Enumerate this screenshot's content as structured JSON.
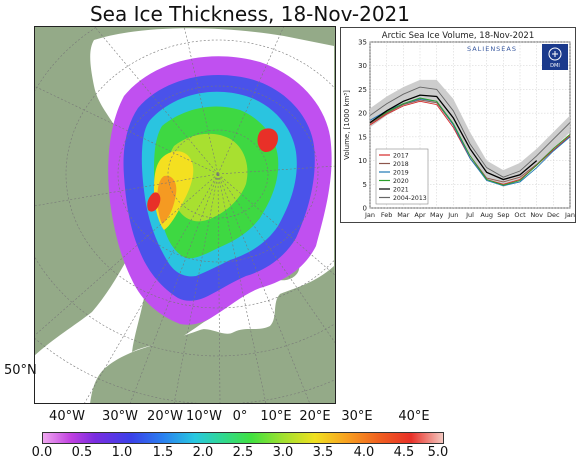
{
  "title": "Sea Ice Thickness, 18-Nov-2021",
  "map": {
    "lon_labels": [
      "40°W",
      "30°W",
      "20°W",
      "10°W",
      "0°",
      "10°E",
      "20°E",
      "30°E",
      "40°E"
    ],
    "lat_label": "50°N",
    "colorbar_ticks": [
      "0.0",
      "0.5",
      "1.0",
      "1.5",
      "2.0",
      "2.5",
      "3.0",
      "3.5",
      "4.0",
      "4.5",
      "5.0"
    ],
    "colors": {
      "land": "#94aa88",
      "ocean": "#ffffff",
      "thin_ice": "#b040f0",
      "thick_ice": "#e83028"
    }
  },
  "chart_data": {
    "type": "line",
    "title": "Arctic Sea Ice Volume, 18-Nov-2021",
    "brand": "SALIENSEAS",
    "logo_text": "DMI",
    "ylabel": "Volume, [1000 km³]",
    "ylim": [
      0,
      35
    ],
    "yticks": [
      "0",
      "5",
      "10",
      "15",
      "20",
      "25",
      "30",
      "35"
    ],
    "categories": [
      "Jan",
      "Feb",
      "Mar",
      "Apr",
      "May",
      "Jun",
      "Jul",
      "Aug",
      "Sep",
      "Oct",
      "Nov",
      "Dec",
      "Jan"
    ],
    "x": [
      0,
      1,
      2,
      3,
      4,
      5,
      6,
      7,
      8,
      9,
      10,
      11,
      12
    ],
    "grid": true,
    "legend_position": "lower-left",
    "band": {
      "upper": [
        21,
        23.5,
        25.5,
        27,
        27,
        23,
        16,
        10,
        8,
        9.5,
        12.5,
        16,
        19.5
      ],
      "lower": [
        17,
        19.5,
        21.5,
        22.5,
        22,
        17.5,
        11,
        6,
        4.5,
        5.5,
        9,
        12.5,
        16
      ]
    },
    "series": [
      {
        "name": "2017",
        "color": "#d62728",
        "values": [
          17.5,
          19.8,
          21.5,
          22.5,
          21.8,
          17.0,
          10.5,
          6.0,
          5.0,
          6.0,
          9.0,
          12.2,
          15.2
        ]
      },
      {
        "name": "2018",
        "color": "#8c564b",
        "values": [
          17.8,
          20.0,
          21.8,
          22.8,
          22.2,
          17.5,
          11.0,
          6.3,
          5.5,
          6.5,
          9.2,
          12.5,
          15.5
        ]
      },
      {
        "name": "2019",
        "color": "#1f77b4",
        "values": [
          18.5,
          20.5,
          22.0,
          23.0,
          22.5,
          17.5,
          10.5,
          5.8,
          4.7,
          5.5,
          8.5,
          12.0,
          15.0
        ]
      },
      {
        "name": "2020",
        "color": "#2ca02c",
        "values": [
          18.0,
          20.2,
          22.0,
          23.2,
          22.5,
          17.8,
          11.0,
          6.0,
          4.8,
          5.8,
          9.0,
          12.5,
          15.5
        ]
      },
      {
        "name": "2021",
        "color": "#000000",
        "values": [
          18.0,
          20.5,
          22.5,
          23.8,
          23.5,
          19.0,
          12.5,
          7.5,
          6.0,
          7.0,
          10.0,
          null,
          null
        ]
      },
      {
        "name": "2004-2013",
        "color": "#666666",
        "values": [
          19.5,
          22.0,
          24.0,
          25.5,
          25.0,
          20.5,
          13.5,
          8.5,
          6.5,
          7.8,
          11.0,
          14.5,
          18.0
        ]
      }
    ]
  }
}
